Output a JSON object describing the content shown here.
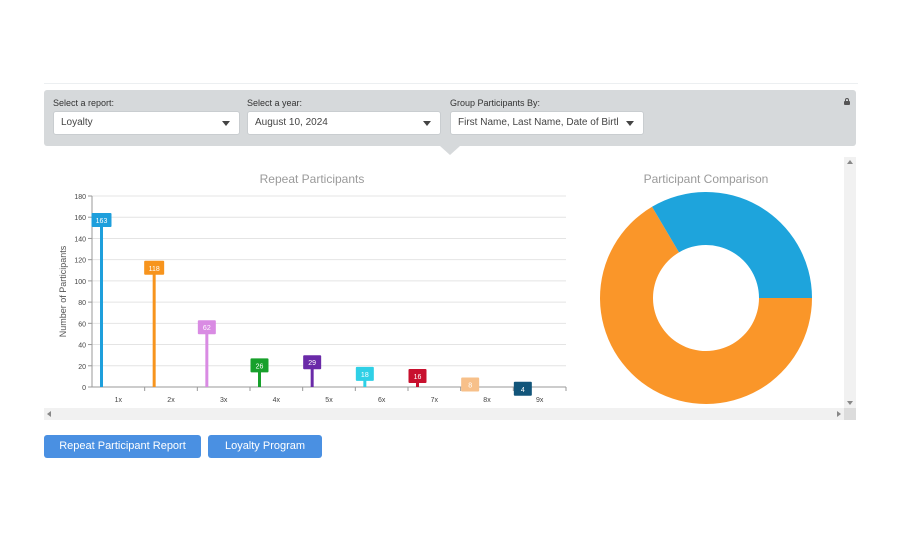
{
  "filters": {
    "report": {
      "label": "Select a report:",
      "value": "Loyalty"
    },
    "year": {
      "label": "Select a year:",
      "value": "August 10, 2024"
    },
    "group": {
      "label": "Group Participants By:",
      "value": "First Name, Last Name, Date of Birth, Gender"
    }
  },
  "buttons": {
    "repeat_report": "Repeat Participant Report",
    "loyalty_program": "Loyalty Program"
  },
  "chart_data": [
    {
      "type": "bar",
      "title": "Repeat Participants",
      "xlabel": "",
      "ylabel": "Number of Participants",
      "categories": [
        "1x",
        "2x",
        "3x",
        "4x",
        "5x",
        "6x",
        "7x",
        "8x",
        "9x"
      ],
      "values": [
        163,
        118,
        62,
        26,
        29,
        18,
        16,
        8,
        4
      ],
      "colors": [
        "#1e9fdc",
        "#f7941d",
        "#d98be3",
        "#17a02b",
        "#6a2aa8",
        "#2fd0e6",
        "#c8102e",
        "#f7c08a",
        "#12557a"
      ],
      "ylim": [
        0,
        180
      ],
      "yticks": [
        0,
        20,
        40,
        60,
        80,
        100,
        120,
        140,
        160,
        180
      ],
      "grid": true,
      "legend": "none"
    },
    {
      "type": "pie",
      "title": "Participant Comparison",
      "slices": [
        {
          "label": "",
          "value": 66.5,
          "color": "#fa9629"
        },
        {
          "label": "",
          "value": 33.5,
          "color": "#1ea4dc"
        }
      ],
      "donut": true
    }
  ]
}
